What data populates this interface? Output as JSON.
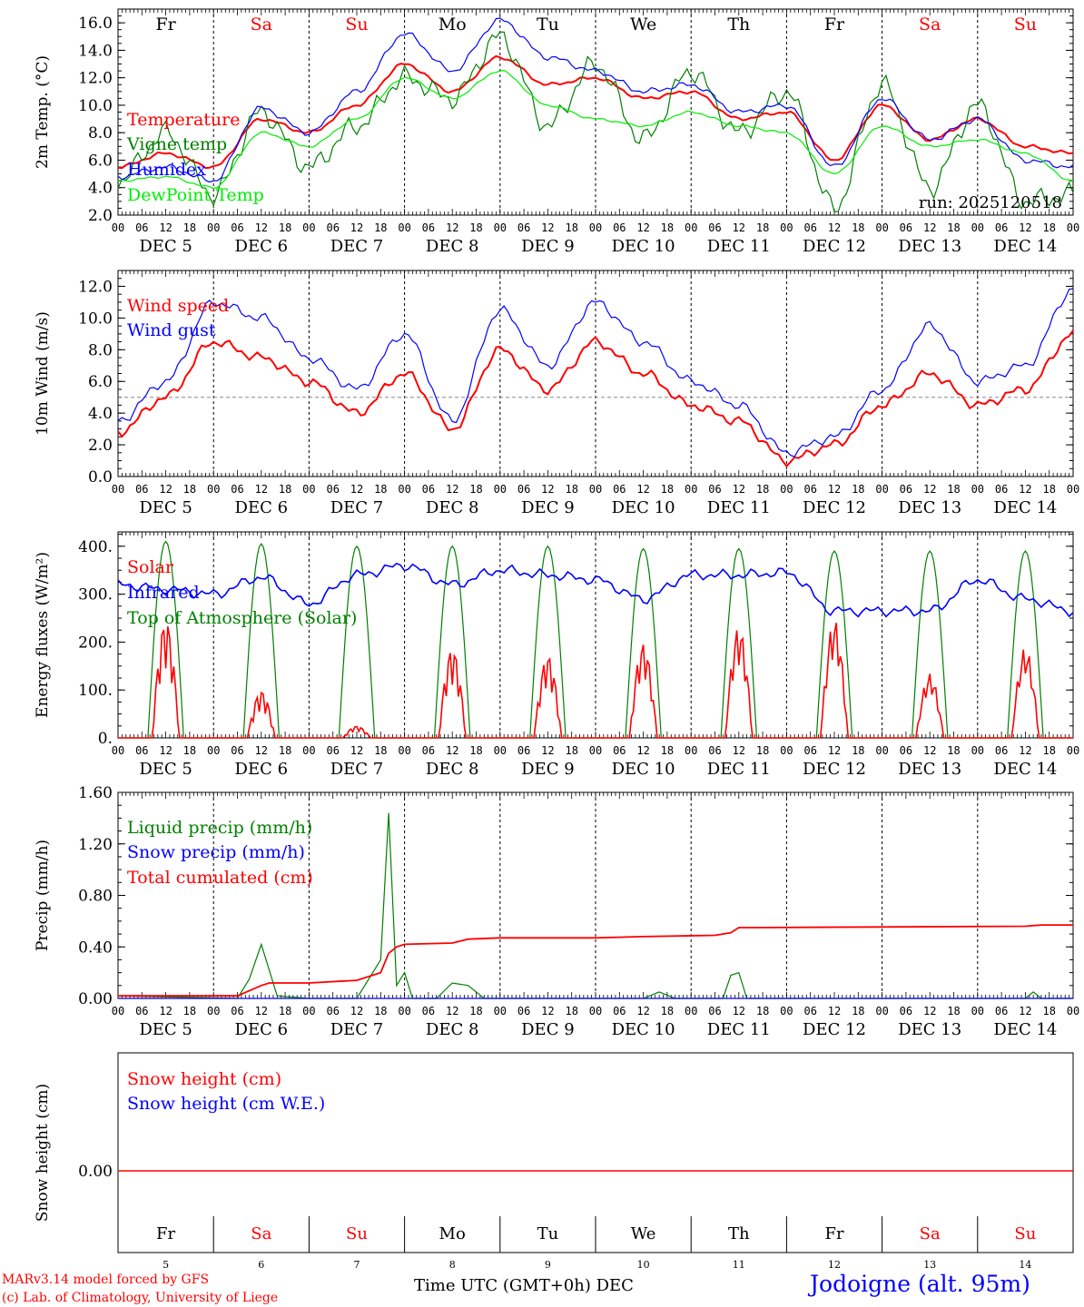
{
  "footer": {
    "credit_line1": "MARv3.14 model forced by GFS",
    "credit_line2": "(c) Lab. of Climatology, University of Liege",
    "xlabel": "Time UTC (GMT+0h)",
    "xlabel_month": "DEC",
    "station": "Jodoigne (alt. 95m)"
  },
  "colors": {
    "red": "#ff0000",
    "green": "#008000",
    "blue": "#0000ff",
    "lightgreen": "#00ee00",
    "grey": "#888888",
    "black": "#000000"
  },
  "chart_data": [
    {
      "type": "line",
      "ylabel": "2m Temp. (°C)",
      "ylim": [
        2,
        17
      ],
      "yticks": [
        "2.0",
        "4.0",
        "6.0",
        "8.0",
        "10.0",
        "12.0",
        "14.0",
        "16.0"
      ],
      "annotation": "run: 2025120518",
      "weekdays": [
        "Fr",
        "Sa",
        "Su",
        "Mo",
        "Tu",
        "We",
        "Th",
        "Fr",
        "Sa",
        "Su"
      ],
      "weekday_colors": [
        "#000000",
        "#ff0000",
        "#ff0000",
        "#000000",
        "#000000",
        "#000000",
        "#000000",
        "#000000",
        "#ff0000",
        "#ff0000"
      ],
      "hour_ticks": [
        "00",
        "06",
        "12",
        "18"
      ],
      "date_labels": [
        "DEC 5",
        "DEC 6",
        "DEC 7",
        "DEC 8",
        "DEC 9",
        "DEC 10",
        "DEC 11",
        "DEC 12",
        "DEC 13",
        "DEC 14"
      ],
      "x_hours": [
        0,
        12,
        24,
        36,
        48,
        60,
        72,
        84,
        96,
        108,
        120,
        132,
        144,
        156,
        168,
        180,
        192,
        204,
        216,
        228,
        240
      ],
      "series": [
        {
          "name": "Temperature",
          "color": "#ff0000",
          "values": [
            5.5,
            6.5,
            5.5,
            9.0,
            8.0,
            10.0,
            13.0,
            11.0,
            13.5,
            11.5,
            12.0,
            10.5,
            11.0,
            9.0,
            9.5,
            6.0,
            10.0,
            7.5,
            9.0,
            7.0,
            6.5
          ]
        },
        {
          "name": "Vigne temp",
          "color": "#008000",
          "values": [
            4.5,
            8.0,
            3.5,
            9.5,
            5.5,
            8.5,
            12.0,
            10.5,
            15.0,
            8.5,
            13.0,
            7.5,
            12.5,
            8.0,
            11.0,
            2.5,
            11.5,
            4.0,
            10.0,
            3.0,
            3.5
          ]
        },
        {
          "name": "Humidex",
          "color": "#0000ff",
          "values": [
            4.8,
            5.5,
            4.5,
            9.8,
            8.0,
            11.0,
            15.2,
            12.5,
            16.2,
            13.5,
            12.5,
            11.0,
            11.5,
            9.5,
            10.0,
            5.5,
            10.5,
            7.5,
            9.0,
            6.0,
            5.5
          ]
        },
        {
          "name": "DewPoint Temp",
          "color": "#00ee00",
          "values": [
            4.5,
            4.8,
            4.0,
            8.0,
            7.0,
            9.0,
            12.0,
            10.5,
            12.5,
            10.0,
            9.0,
            8.5,
            9.5,
            8.5,
            8.0,
            5.0,
            8.5,
            7.0,
            7.5,
            6.5,
            4.5
          ]
        }
      ]
    },
    {
      "type": "line",
      "ylabel": "10m Wind (m/s)",
      "ylim": [
        0,
        13
      ],
      "yticks": [
        "0.0",
        "2.0",
        "4.0",
        "6.0",
        "8.0",
        "10.0",
        "12.0"
      ],
      "ref_line": 5.0,
      "hour_ticks": [
        "00",
        "06",
        "12",
        "18"
      ],
      "date_labels": [
        "DEC 5",
        "DEC 6",
        "DEC 7",
        "DEC 8",
        "DEC 9",
        "DEC 10",
        "DEC 11",
        "DEC 12",
        "DEC 13",
        "DEC 14"
      ],
      "x_hours": [
        0,
        12,
        24,
        36,
        48,
        60,
        72,
        84,
        96,
        108,
        120,
        132,
        144,
        156,
        168,
        180,
        192,
        204,
        216,
        228,
        240
      ],
      "series": [
        {
          "name": "Wind speed",
          "color": "#ff0000",
          "values": [
            2.8,
            5.0,
            8.5,
            7.5,
            6.0,
            4.0,
            6.5,
            3.0,
            8.0,
            5.5,
            8.5,
            6.5,
            4.5,
            3.5,
            1.0,
            2.0,
            4.5,
            6.5,
            4.5,
            5.5,
            9.0
          ]
        },
        {
          "name": "Wind gust",
          "color": "#0000ff",
          "values": [
            3.5,
            6.0,
            11.0,
            10.0,
            7.5,
            5.5,
            9.0,
            3.5,
            10.5,
            7.0,
            11.0,
            8.5,
            6.0,
            4.5,
            1.5,
            2.5,
            5.5,
            9.5,
            6.0,
            7.0,
            11.8
          ]
        }
      ]
    },
    {
      "type": "line",
      "ylabel": "Energy fluxes (W/m²)",
      "ylim": [
        0,
        430
      ],
      "yticks": [
        "0.",
        "100.",
        "200.",
        "300.",
        "400."
      ],
      "hour_ticks": [
        "00",
        "06",
        "12",
        "18"
      ],
      "date_labels": [
        "DEC 5",
        "DEC 6",
        "DEC 7",
        "DEC 8",
        "DEC 9",
        "DEC 10",
        "DEC 11",
        "DEC 12",
        "DEC 13",
        "DEC 14"
      ],
      "series": [
        {
          "name": "Solar",
          "color": "#ff0000",
          "daily_peaks": [
            250,
            100,
            25,
            190,
            175,
            200,
            235,
            250,
            135,
            190
          ]
        },
        {
          "name": "Infrared",
          "color": "#0000ff",
          "x_hours": [
            0,
            12,
            24,
            36,
            48,
            60,
            72,
            84,
            96,
            108,
            120,
            132,
            144,
            156,
            168,
            180,
            192,
            204,
            216,
            228,
            240
          ],
          "values": [
            320,
            310,
            300,
            335,
            280,
            340,
            360,
            320,
            350,
            340,
            330,
            290,
            340,
            340,
            345,
            265,
            265,
            265,
            330,
            290,
            265
          ]
        },
        {
          "name": "Top of Atmosphere (Solar)",
          "color": "#008000",
          "daily_peaks": [
            410,
            405,
            400,
            400,
            400,
            395,
            395,
            390,
            390,
            390
          ]
        }
      ]
    },
    {
      "type": "line",
      "ylabel": "Precip (mm/h)",
      "ylim": [
        0,
        1.6
      ],
      "yticks": [
        "0.00",
        "0.40",
        "0.80",
        "1.20",
        "1.60"
      ],
      "hour_ticks": [
        "00",
        "06",
        "12",
        "18"
      ],
      "date_labels": [
        "DEC 5",
        "DEC 6",
        "DEC 7",
        "DEC 8",
        "DEC 9",
        "DEC 10",
        "DEC 11",
        "DEC 12",
        "DEC 13",
        "DEC 14"
      ],
      "series": [
        {
          "name": "Liquid precip (mm/h)",
          "color": "#008000",
          "x_hours": [
            0,
            30,
            33,
            36,
            40,
            48,
            60,
            66,
            68,
            70,
            72,
            74,
            80,
            84,
            88,
            92,
            96,
            102,
            132,
            136,
            140,
            152,
            154,
            156,
            158,
            160,
            228,
            230,
            232,
            240
          ],
          "values": [
            0.02,
            0.0,
            0.15,
            0.42,
            0.02,
            0.0,
            0.0,
            0.3,
            1.44,
            0.1,
            0.2,
            0.0,
            0.0,
            0.12,
            0.1,
            0.0,
            0.0,
            0.0,
            0.0,
            0.05,
            0.0,
            0.0,
            0.18,
            0.2,
            0.0,
            0.0,
            0.0,
            0.05,
            0.0,
            0.0
          ]
        },
        {
          "name": "Snow precip (mm/h)",
          "color": "#0000ff",
          "x_hours": [
            0,
            240
          ],
          "values": [
            0.0,
            0.0
          ]
        },
        {
          "name": "Total cumulated (cm)",
          "color": "#ff0000",
          "x_hours": [
            0,
            30,
            36,
            38,
            48,
            60,
            66,
            68,
            70,
            72,
            84,
            88,
            96,
            120,
            132,
            150,
            154,
            156,
            160,
            228,
            232,
            240
          ],
          "values": [
            0.02,
            0.02,
            0.1,
            0.12,
            0.12,
            0.14,
            0.2,
            0.35,
            0.4,
            0.42,
            0.43,
            0.46,
            0.47,
            0.47,
            0.48,
            0.49,
            0.51,
            0.55,
            0.55,
            0.56,
            0.57,
            0.57
          ]
        }
      ]
    },
    {
      "type": "line",
      "ylabel": "Snow height (cm)",
      "yticks": [
        "0.00"
      ],
      "weekdays": [
        "Fr",
        "Sa",
        "Su",
        "Mo",
        "Tu",
        "We",
        "Th",
        "Fr",
        "Sa",
        "Su"
      ],
      "weekday_colors": [
        "#000000",
        "#ff0000",
        "#ff0000",
        "#000000",
        "#000000",
        "#000000",
        "#000000",
        "#000000",
        "#ff0000",
        "#ff0000"
      ],
      "day_numbers": [
        "5",
        "6",
        "7",
        "8",
        "9",
        "10",
        "11",
        "12",
        "13",
        "14"
      ],
      "series": [
        {
          "name": "Snow height (cm)",
          "color": "#ff0000",
          "x_hours": [
            0,
            240
          ],
          "values": [
            0,
            0
          ]
        },
        {
          "name": "Snow height (cm W.E.)",
          "color": "#0000ff",
          "x_hours": [
            0,
            240
          ],
          "values": [
            0,
            0
          ]
        }
      ]
    }
  ]
}
